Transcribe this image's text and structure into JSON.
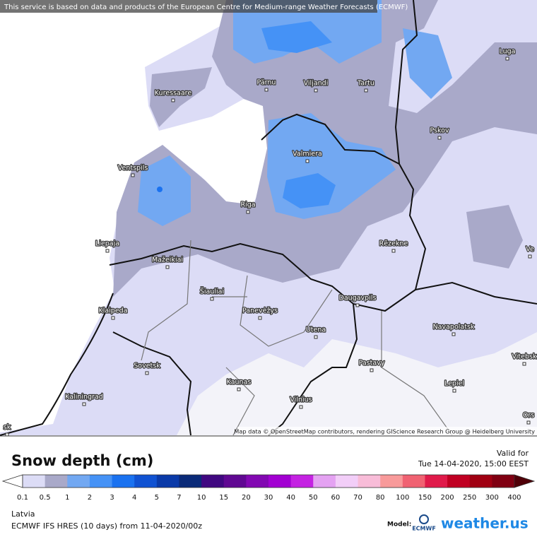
{
  "header": {
    "attribution": "This service is based on data and products of the European Centre for Medium-range Weather Forecasts (ECMWF)"
  },
  "map": {
    "cities": [
      "Kuressaare",
      "Pärnu",
      "Viljandi",
      "Tartu",
      "Luga",
      "Pskov",
      "Valmiera",
      "Ventspils",
      "Riga",
      "Liepaja",
      "Rēzekne",
      "Mažeikiai",
      "Šiauliai",
      "Klaipeda",
      "Panevėžys",
      "Daugavpils",
      "Utena",
      "Navapolatsk",
      "Vitebsk",
      "Sovetsk",
      "Pastavy",
      "Kaunas",
      "Lepiel",
      "Kaliningrad",
      "Vilnius",
      "Ve",
      "Ors",
      "sk"
    ],
    "attribution": "Map data © OpenStreetMap contributors, rendering GIScience Research Group @ Heidelberg University"
  },
  "legend": {
    "title": "Snow depth (cm)",
    "valid_label": "Valid for",
    "valid_time": "Tue 14-04-2020, 15:00 EEST",
    "ticks": [
      "0.1",
      "0.5",
      "1",
      "2",
      "3",
      "4",
      "5",
      "7",
      "10",
      "15",
      "20",
      "30",
      "40",
      "50",
      "60",
      "70",
      "80",
      "100",
      "150",
      "200",
      "250",
      "300",
      "400"
    ],
    "colors": [
      "#dcdcf6",
      "#a9a9c9",
      "#72a8f2",
      "#4592f6",
      "#1a72f0",
      "#1052d2",
      "#0a3aa8",
      "#0a2a78",
      "#400880",
      "#600892",
      "#8208b2",
      "#a200d2",
      "#c422e2",
      "#e4a2f2",
      "#f2cef8",
      "#f8bcd8",
      "#f89a9a",
      "#f06272",
      "#e01a4a",
      "#c00022",
      "#a00012",
      "#800012"
    ]
  },
  "footer": {
    "region": "Latvia",
    "model_run": "ECMWF IFS HRES (10 days) from 11-04-2020/00z",
    "model_label": "Model:",
    "model_logo": "ECMWF",
    "brand": "weather.us"
  }
}
